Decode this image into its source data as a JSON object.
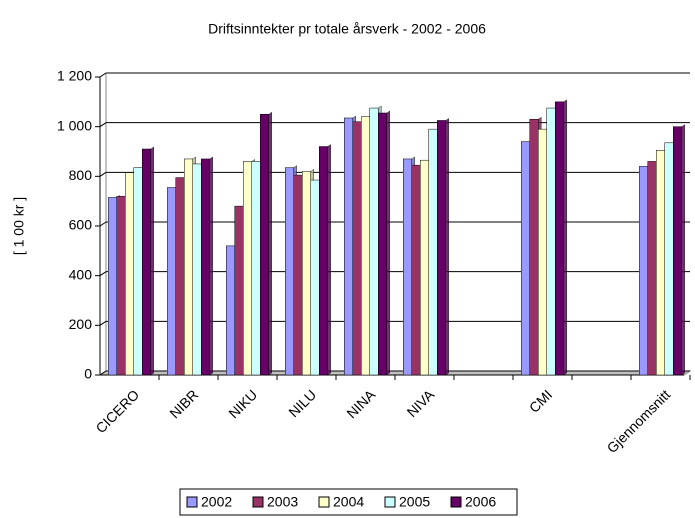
{
  "chart_data": {
    "type": "bar",
    "title": "Driftsinntekter pr totale årsverk  -  2002 - 2006",
    "y_label": "[ 1 00 kr ]",
    "categories": [
      "CICERO",
      "NIBR",
      "NIKU",
      "NILU",
      "NINA",
      "NIVA",
      null,
      "CMI",
      null,
      "Gjennomsnitt"
    ],
    "series": [
      {
        "name": "2002",
        "color": "#9999ff",
        "values": [
          715,
          755,
          520,
          835,
          1035,
          870,
          null,
          940,
          null,
          840
        ]
      },
      {
        "name": "2003",
        "color": "#993366",
        "values": [
          720,
          795,
          680,
          805,
          1020,
          845,
          null,
          1030,
          null,
          860
        ]
      },
      {
        "name": "2004",
        "color": "#ffffcc",
        "values": [
          815,
          870,
          860,
          820,
          1040,
          865,
          null,
          990,
          null,
          905
        ]
      },
      {
        "name": "2005",
        "color": "#ccffff",
        "values": [
          835,
          850,
          860,
          785,
          1075,
          990,
          null,
          1075,
          null,
          935
        ]
      },
      {
        "name": "2006",
        "color": "#660066",
        "values": [
          910,
          870,
          1050,
          920,
          1055,
          1025,
          null,
          1100,
          null,
          1000
        ]
      }
    ],
    "ylim": [
      0,
      1200
    ],
    "yticks": [
      0,
      200,
      400,
      600,
      800,
      {
        "value": 1000,
        "label": "1 000"
      },
      {
        "value": 1200,
        "label": "1 200"
      }
    ],
    "grid": true
  }
}
